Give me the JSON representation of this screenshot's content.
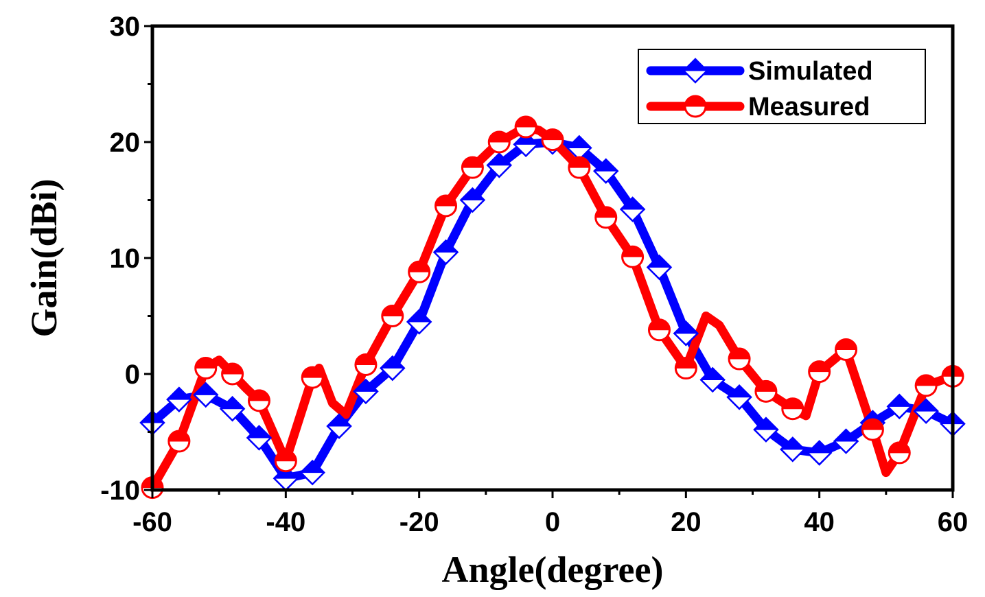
{
  "chart_data": {
    "type": "line",
    "title": "",
    "xlabel": "Angle(degree)",
    "ylabel": "Gain(dBi)",
    "xlim": [
      -60,
      60
    ],
    "ylim": [
      -10,
      30
    ],
    "xticks": [
      -60,
      -40,
      -20,
      0,
      20,
      40,
      60
    ],
    "yticks": [
      -10,
      0,
      10,
      20,
      30
    ],
    "legend_position": "top-right",
    "series": [
      {
        "name": "Simulated",
        "color": "#0000ff",
        "marker": "diamond-half",
        "x": [
          -60,
          -56,
          -52,
          -48,
          -44,
          -40,
          -36,
          -32,
          -28,
          -24,
          -20,
          -16,
          -12,
          -8,
          -4,
          0,
          4,
          8,
          12,
          16,
          20,
          24,
          28,
          32,
          36,
          40,
          44,
          48,
          52,
          56,
          60
        ],
        "y": [
          -4.2,
          -2.2,
          -1.8,
          -3.0,
          -5.5,
          -9.0,
          -8.5,
          -4.5,
          -1.5,
          0.5,
          4.5,
          10.5,
          15.0,
          18.0,
          19.8,
          20.0,
          19.5,
          17.5,
          14.2,
          9.2,
          3.5,
          -0.5,
          -2.0,
          -4.8,
          -6.5,
          -6.8,
          -5.8,
          -4.2,
          -2.8,
          -3.2,
          -4.3
        ]
      },
      {
        "name": "Measured",
        "color": "#ff0000",
        "marker": "circle-half",
        "x": [
          -60,
          -56,
          -52,
          -50,
          -48,
          -46,
          -44,
          -40,
          -36,
          -35,
          -33,
          -31,
          -28,
          -24,
          -20,
          -16,
          -12,
          -8,
          -4,
          -2,
          0,
          4,
          8,
          12,
          16,
          20,
          23,
          25,
          28,
          32,
          36,
          38,
          40,
          44,
          48,
          50,
          52,
          56,
          60
        ],
        "y": [
          -9.8,
          -5.8,
          0.5,
          1.2,
          0.0,
          -1.2,
          -2.3,
          -7.5,
          -0.3,
          0.5,
          -2.5,
          -3.5,
          0.8,
          5.0,
          8.8,
          14.5,
          17.8,
          20.0,
          21.3,
          21.0,
          20.2,
          17.8,
          13.5,
          10.1,
          3.8,
          0.5,
          5.0,
          4.2,
          1.3,
          -1.5,
          -3.0,
          -3.6,
          0.2,
          2.1,
          -4.8,
          -8.5,
          -6.8,
          -1.0,
          -0.2
        ]
      }
    ]
  }
}
